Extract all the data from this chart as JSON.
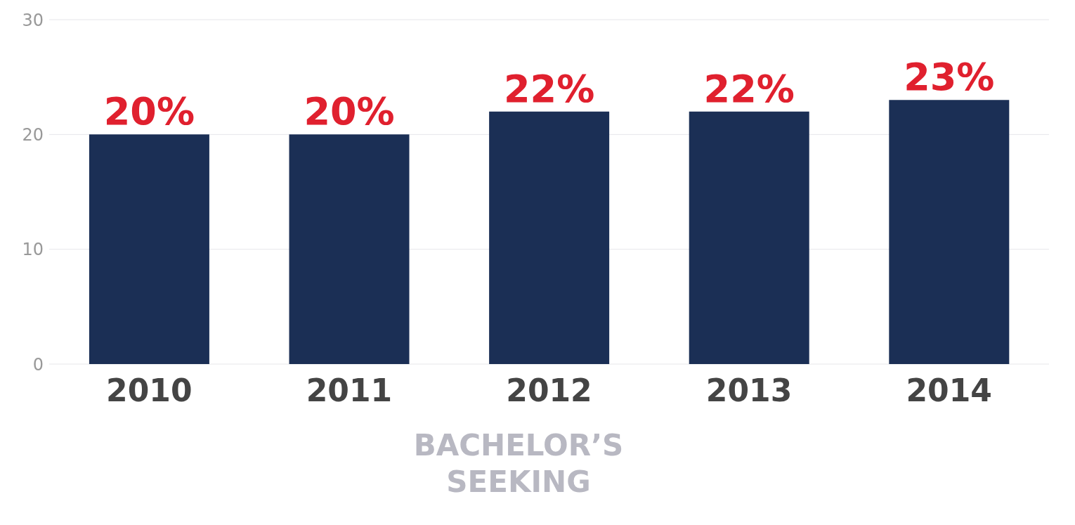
{
  "chart_data": {
    "type": "bar",
    "categories": [
      "2010",
      "2011",
      "2012",
      "2013",
      "2014"
    ],
    "values": [
      20,
      20,
      22,
      22,
      23
    ],
    "value_labels": [
      "20%",
      "20%",
      "22%",
      "22%",
      "23%"
    ],
    "color": "#1b2f55",
    "ylim": [
      0,
      30
    ],
    "yticks": [
      0,
      10,
      20,
      30
    ],
    "grid": "y",
    "xlabel": "BACHELOR’S SEEKING"
  }
}
